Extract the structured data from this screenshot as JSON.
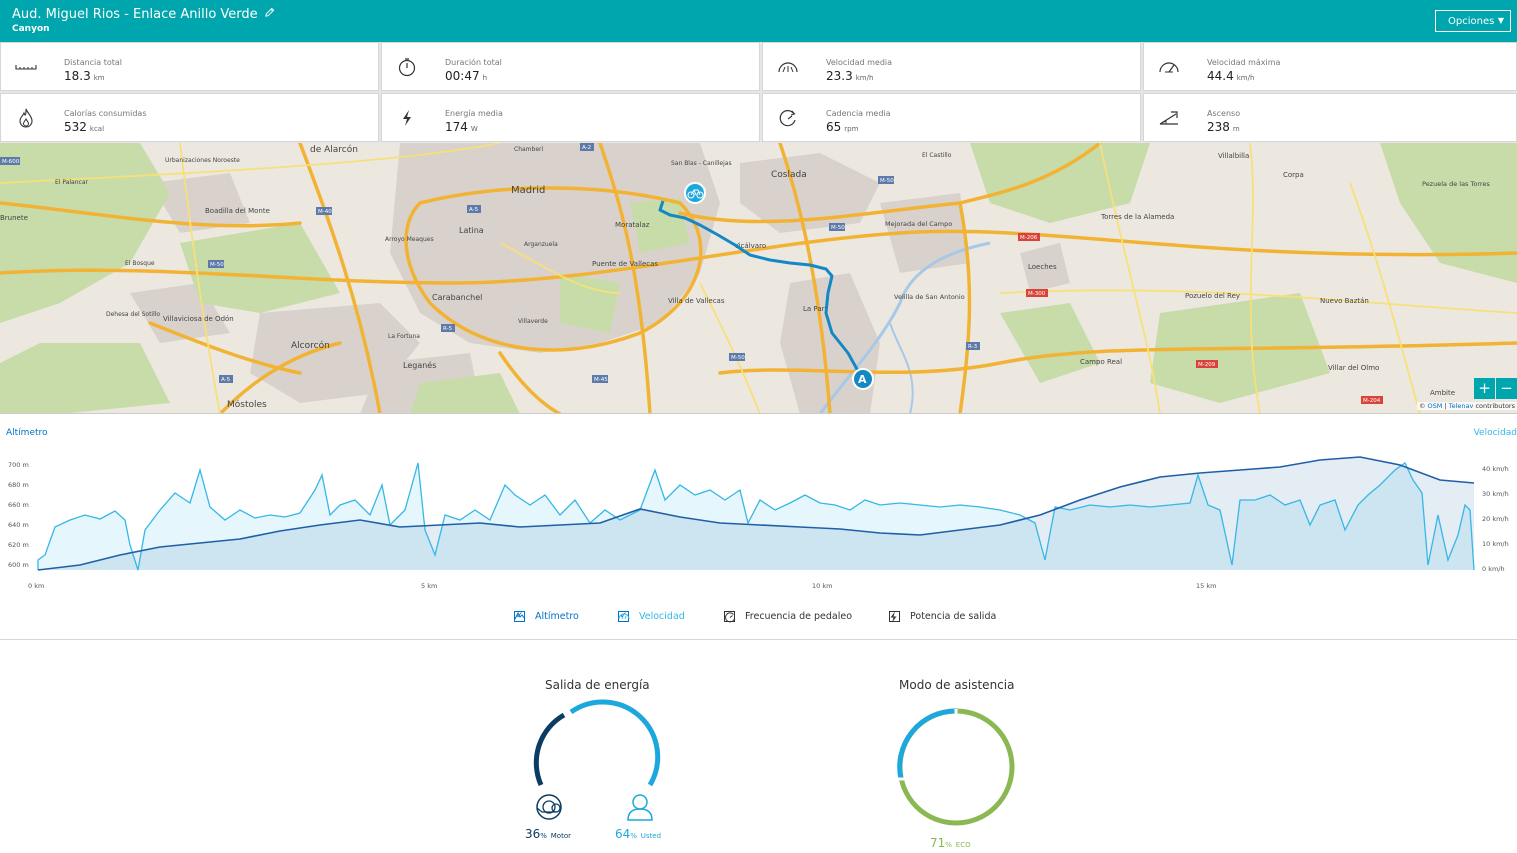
{
  "header": {
    "title": "Aud. Miguel Rios - Enlace Anillo Verde",
    "subtitle": "Canyon",
    "options_label": "Opciones",
    "edit_icon": "pencil-icon",
    "bg_color": "#00a6ad"
  },
  "stats": [
    {
      "label": "Distancia total",
      "value": "18.3",
      "unit": "km",
      "icon": "ruler-icon"
    },
    {
      "label": "Duración total",
      "value": "00:47",
      "unit": "h",
      "icon": "stopwatch-icon"
    },
    {
      "label": "Velocidad media",
      "value": "23.3",
      "unit": "km/h",
      "icon": "speedometer-icon"
    },
    {
      "label": "Velocidad máxima",
      "value": "44.4",
      "unit": "km/h",
      "icon": "speedometer-max-icon"
    },
    {
      "label": "Calorías consumidas",
      "value": "532",
      "unit": "kcal",
      "icon": "flame-icon"
    },
    {
      "label": "Energía media",
      "value": "174",
      "unit": "W",
      "icon": "bolt-icon"
    },
    {
      "label": "Cadencia media",
      "value": "65",
      "unit": "rpm",
      "icon": "cadence-icon"
    },
    {
      "label": "Ascenso",
      "value": "238",
      "unit": "m",
      "icon": "ascent-icon"
    }
  ],
  "map": {
    "labels": {
      "madrid": "Madrid",
      "coslada": "Coslada",
      "latina": "Latina",
      "moratalaz": "Moratalaz",
      "vicalvaro": "Vicálvaro",
      "puente": "Puente de Vallecas",
      "villa": "Villa de Vallecas",
      "carabanchel": "Carabanchel",
      "alcorcon": "Alcorcón",
      "leganes": "Leganés",
      "mostoles": "Móstoles",
      "boadilla": "Boadilla del Monte",
      "villaviciosa": "Villaviciosa de Odón",
      "mejorada": "Mejorada del Campo",
      "loeches": "Loeches",
      "torres": "Torres de la Alameda",
      "pozuelo": "Pozuelo del Rey",
      "nuevo": "Nuevo Baztán",
      "campo": "Campo Real",
      "villar": "Villar del Olmo",
      "velilla": "Velilla de San Antonio",
      "villalbilla": "Villalbilla",
      "corpa": "Corpa",
      "santorcaz": "Pezuela de las Torres",
      "dealarcon": "de Alarcón",
      "lapart": "La Part",
      "ambite": "Ambite",
      "brunete": "Brunete",
      "fortuna": "La Fortuna",
      "palancar": "El Palancar",
      "elcastillo": "El Castillo",
      "bosque": "El Bosque",
      "urb": "Urbanizaciones Noroeste",
      "arroyo": "Arroyo Meaques",
      "arganzuela": "Arganzuela",
      "chamberi": "Chamberí",
      "sanblas": "San Blas - Canillejas",
      "villaverde": "Villaverde",
      "dehesa": "Dehesa del Sotillo",
      "marker": "A"
    },
    "roads": [
      "M-40",
      "M-50",
      "M-30",
      "A-5",
      "R-5",
      "M-45",
      "A-2",
      "M-206",
      "M-300",
      "R-3",
      "M-209",
      "M-204",
      "M-600",
      "A-4"
    ],
    "zoom_in": "+",
    "zoom_out": "−",
    "attribution_prefix": "©",
    "attribution_osm": "OSM",
    "attribution_sep": "|",
    "attribution_telenav": "Telenav",
    "attribution_suffix": "contributors",
    "route_color": "#1487c5"
  },
  "chart": {
    "left_title": "Altímetro",
    "right_title": "Velocidad",
    "y_left_ticks": [
      "700 m",
      "680 m",
      "660 m",
      "640 m",
      "620 m",
      "600 m"
    ],
    "y_right_ticks": [
      "40 km/h",
      "30 km/h",
      "20 km/h",
      "10 km/h",
      "0 km/h"
    ],
    "x_ticks": [
      "0 km",
      "5 km",
      "10 km",
      "15 km"
    ],
    "altitude_color": "#1f5fa8",
    "speed_color": "#36b7e6"
  },
  "legend": {
    "altimetro": "Altímetro",
    "velocidad": "Velocidad",
    "frecuencia": "Frecuencia de pedaleo",
    "potencia": "Potencia de salida",
    "altimetro_checked": true,
    "velocidad_checked": true,
    "frecuencia_checked": false,
    "potencia_checked": false,
    "check": "✓"
  },
  "energy": {
    "title": "Salida de energía",
    "motor_pct": "36",
    "motor_label": "Motor",
    "user_pct": "64",
    "user_label": "Usted",
    "pct_sign": "%",
    "motor_color": "#0a3d62",
    "user_color": "#1ca8dd"
  },
  "assist": {
    "title": "Modo de asistencia",
    "eco_pct": "71",
    "eco_label": "ECO",
    "pct_sign": "%",
    "other_pct": 29,
    "eco_color": "#8cb853",
    "other_color": "#1ca8dd"
  }
}
